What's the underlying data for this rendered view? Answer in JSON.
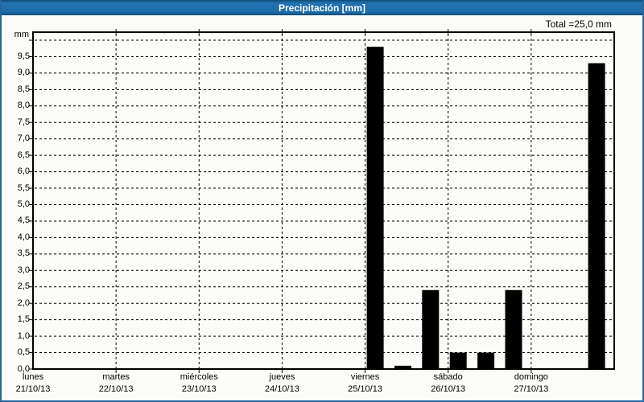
{
  "window": {
    "title": "Precipitación [mm]"
  },
  "header": {
    "total_label": "Total =25,0 mm"
  },
  "chart_data": {
    "type": "bar",
    "title": "Precipitación [mm]",
    "total_mm": 25.0,
    "y_axis": {
      "label": "mm",
      "min": 0,
      "max": 10.25,
      "tick_step": 0.5,
      "max_labeled_tick": 9.5,
      "max_gridline": 10.0,
      "decimal_separator": ","
    },
    "x_axis": {
      "days": [
        {
          "name": "lunes",
          "date": "21/10/13"
        },
        {
          "name": "martes",
          "date": "22/10/13"
        },
        {
          "name": "miércoles",
          "date": "23/10/13"
        },
        {
          "name": "jueves",
          "date": "24/10/13"
        },
        {
          "name": "viernes",
          "date": "25/10/13"
        },
        {
          "name": "sábado",
          "date": "26/10/13"
        },
        {
          "name": "domingo",
          "date": "27/10/13"
        }
      ],
      "slots_per_day": 3
    },
    "bars": [
      {
        "day": 4,
        "slot": 0,
        "value": 9.8
      },
      {
        "day": 4,
        "slot": 1,
        "value": 0.1
      },
      {
        "day": 4,
        "slot": 2,
        "value": 2.4
      },
      {
        "day": 5,
        "slot": 0,
        "value": 0.5
      },
      {
        "day": 5,
        "slot": 1,
        "value": 0.5
      },
      {
        "day": 5,
        "slot": 2,
        "value": 2.4
      },
      {
        "day": 6,
        "slot": 2,
        "value": 9.3
      }
    ],
    "grid": true,
    "legend": "none",
    "colors": {
      "bar": "#000000",
      "grid": "#000000",
      "plot_border": "#000000",
      "titlebar_blue": "#1e6ca8",
      "window_border": "#28659e",
      "background": "#fbfcf7"
    }
  }
}
